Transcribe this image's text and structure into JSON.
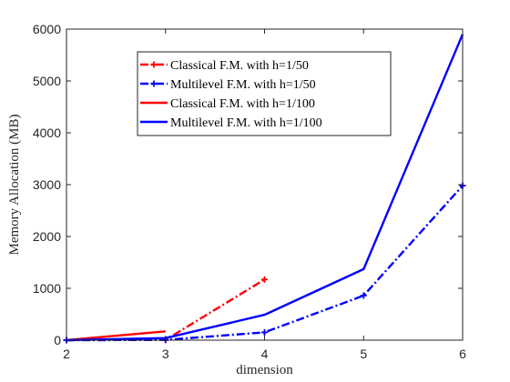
{
  "chart_data": {
    "type": "line",
    "xlabel": "dimension",
    "ylabel": "Memory Allocation (MB)",
    "xlim": [
      2,
      6
    ],
    "ylim": [
      0,
      6000
    ],
    "xticks": [
      2,
      3,
      4,
      5,
      6
    ],
    "yticks": [
      0,
      1000,
      2000,
      3000,
      4000,
      5000,
      6000
    ],
    "grid": false,
    "legend_position": "upper-center",
    "series": [
      {
        "name": "Classical F.M. with h=1/50",
        "color": "#ff0000",
        "line_style": "dash-dot",
        "marker": "plus",
        "x": [
          2,
          3,
          4
        ],
        "y": [
          0,
          5,
          1170
        ]
      },
      {
        "name": "Multilevel F.M. with h=1/50",
        "color": "#0000ff",
        "line_style": "dash-dot",
        "marker": "plus",
        "x": [
          2,
          3,
          4,
          5,
          6
        ],
        "y": [
          0,
          5,
          150,
          860,
          2980
        ]
      },
      {
        "name": "Classical F.M. with h=1/100",
        "color": "#ff0000",
        "line_style": "solid",
        "marker": "none",
        "x": [
          2,
          3
        ],
        "y": [
          0,
          170
        ]
      },
      {
        "name": "Multilevel F.M. with h=1/100",
        "color": "#0000ff",
        "line_style": "solid",
        "marker": "none",
        "x": [
          2,
          3,
          4,
          5,
          6
        ],
        "y": [
          0,
          40,
          490,
          1370,
          5900
        ]
      }
    ]
  }
}
